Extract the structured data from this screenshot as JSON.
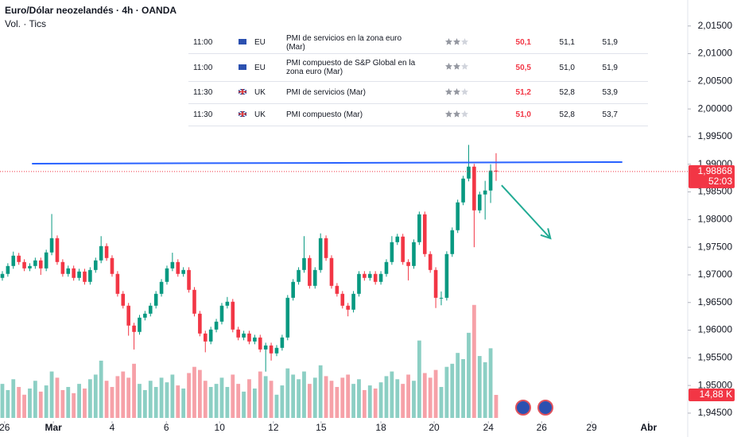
{
  "header": {
    "title": "Euro/Dólar neozelandés · 4h · OANDA",
    "indicator": "Vol. · Tics"
  },
  "events": {
    "rows": [
      [
        "11:00",
        "EU",
        "PMI de servicios en la zona euro (Mar)",
        "50,1",
        "51,1",
        "51,9"
      ],
      [
        "11:00",
        "EU",
        "PMI compuesto de S&P Global en la zona euro (Mar)",
        "50,5",
        "51,0",
        "51,9"
      ],
      [
        "11:30",
        "UK",
        "PMI de servicios (Mar)",
        "51,2",
        "52,8",
        "53,9"
      ],
      [
        "11:30",
        "UK",
        "PMI compuesto (Mar)",
        "51,0",
        "52,8",
        "53,7"
      ]
    ]
  },
  "chart_data": {
    "type": "candlestick",
    "open": [
      1.96945,
      1.97017,
      1.9716,
      1.97347,
      1.97232,
      1.97117,
      1.9716,
      1.97261,
      1.97117,
      1.97405,
      1.97663,
      1.97232,
      1.97017,
      1.97117,
      1.96945,
      1.9706,
      1.96873,
      1.97088,
      1.97261,
      1.9752,
      1.97304,
      1.97017,
      1.96657,
      1.96442,
      1.96083,
      1.95968,
      1.96226,
      1.96298,
      1.96442,
      1.96657,
      1.96873,
      1.97117,
      1.97232,
      1.97017,
      1.97088,
      1.96729,
      1.96298,
      1.95939,
      1.95795,
      1.96011,
      1.96154,
      1.96442,
      1.96514,
      1.96011,
      1.95867,
      1.95939,
      1.95795,
      1.95867,
      1.95651,
      1.95723,
      1.9558,
      1.9568,
      1.95867,
      1.96585,
      1.96873,
      1.97088,
      1.97304,
      1.96801,
      1.97088,
      1.97663,
      1.97304,
      1.96801,
      1.96657,
      1.96442,
      1.9637,
      1.96657,
      1.97017,
      1.96945,
      1.97017,
      1.96873,
      1.97017,
      1.97232,
      1.97591,
      1.97692,
      1.97232,
      1.9716,
      1.97591,
      1.98094,
      1.97376,
      1.97088,
      1.96585,
      1.96585,
      1.97376,
      1.97807,
      1.9831,
      1.98741,
      1.98957,
      1.98166,
      1.98454,
      1.98525,
      1.98885
    ],
    "high": [
      1.97067,
      1.9721,
      1.9742,
      1.97397,
      1.97282,
      1.9721,
      1.97311,
      1.97311,
      1.97455,
      1.981,
      1.97713,
      1.97282,
      1.97167,
      1.97167,
      1.9711,
      1.9711,
      1.97138,
      1.97311,
      1.977,
      1.9757,
      1.97354,
      1.97067,
      1.96707,
      1.96492,
      1.96133,
      1.96276,
      1.96348,
      1.96492,
      1.96707,
      1.96923,
      1.97167,
      1.974,
      1.97282,
      1.97138,
      1.97138,
      1.96779,
      1.96348,
      1.95989,
      1.96061,
      1.96204,
      1.96492,
      1.966,
      1.96564,
      1.96061,
      1.95989,
      1.95989,
      1.95917,
      1.95917,
      1.95773,
      1.95773,
      1.9573,
      1.95917,
      1.96635,
      1.96923,
      1.97138,
      1.977,
      1.97354,
      1.97138,
      1.9775,
      1.97713,
      1.97354,
      1.96851,
      1.96707,
      1.96492,
      1.96707,
      1.97067,
      1.97067,
      1.97067,
      1.97067,
      1.97067,
      1.97282,
      1.977,
      1.97742,
      1.97742,
      1.97282,
      1.97641,
      1.98144,
      1.98144,
      1.97426,
      1.97138,
      1.967,
      1.97426,
      1.97857,
      1.9836,
      1.98791,
      1.9935,
      1.99007,
      1.98504,
      1.987,
      1.99,
      1.992
    ],
    "low": [
      1.96895,
      1.96967,
      1.9711,
      1.97182,
      1.97067,
      1.97067,
      1.9711,
      1.97,
      1.97067,
      1.97355,
      1.97182,
      1.96967,
      1.96967,
      1.96895,
      1.96895,
      1.96823,
      1.96823,
      1.97038,
      1.97211,
      1.97254,
      1.96967,
      1.96607,
      1.96392,
      1.959,
      1.9565,
      1.95918,
      1.96176,
      1.96248,
      1.96392,
      1.96607,
      1.96823,
      1.97067,
      1.96967,
      1.96967,
      1.96679,
      1.96248,
      1.95889,
      1.956,
      1.95745,
      1.95961,
      1.96104,
      1.96392,
      1.95961,
      1.95817,
      1.95817,
      1.95745,
      1.95745,
      1.95601,
      1.9525,
      1.9545,
      1.9553,
      1.9563,
      1.95817,
      1.96535,
      1.96823,
      1.97038,
      1.96751,
      1.96751,
      1.97038,
      1.97254,
      1.96751,
      1.96607,
      1.96392,
      1.9625,
      1.9632,
      1.96607,
      1.96895,
      1.96895,
      1.96823,
      1.96823,
      1.96967,
      1.97182,
      1.97541,
      1.97182,
      1.969,
      1.9711,
      1.97541,
      1.97326,
      1.97038,
      1.964,
      1.9645,
      1.96535,
      1.97326,
      1.97757,
      1.9826,
      1.98691,
      1.975,
      1.98116,
      1.98,
      1.983,
      1.987
    ],
    "close": [
      1.97017,
      1.9716,
      1.97347,
      1.97232,
      1.97117,
      1.9716,
      1.97261,
      1.97117,
      1.97405,
      1.97663,
      1.97232,
      1.97017,
      1.97117,
      1.96945,
      1.9706,
      1.96873,
      1.97088,
      1.97261,
      1.9752,
      1.97304,
      1.97017,
      1.96657,
      1.96442,
      1.96083,
      1.95968,
      1.96226,
      1.96298,
      1.96442,
      1.96657,
      1.96873,
      1.97117,
      1.97232,
      1.97017,
      1.97088,
      1.96729,
      1.96298,
      1.95939,
      1.95795,
      1.96011,
      1.96154,
      1.96442,
      1.96514,
      1.96011,
      1.95867,
      1.95939,
      1.95795,
      1.95867,
      1.95651,
      1.95723,
      1.9558,
      1.9568,
      1.95867,
      1.96585,
      1.96873,
      1.97088,
      1.97304,
      1.96801,
      1.97088,
      1.97663,
      1.97304,
      1.96801,
      1.96657,
      1.96442,
      1.9637,
      1.96657,
      1.97017,
      1.96945,
      1.97017,
      1.96873,
      1.97017,
      1.97232,
      1.97591,
      1.97692,
      1.97232,
      1.9716,
      1.97591,
      1.98094,
      1.97376,
      1.97088,
      1.96585,
      1.96585,
      1.97376,
      1.97807,
      1.9831,
      1.98741,
      1.98957,
      1.98166,
      1.98454,
      1.98525,
      1.98885,
      1.98868
    ],
    "volume": [
      22,
      18,
      25,
      20,
      15,
      19,
      24,
      17,
      21,
      30,
      26,
      18,
      20,
      16,
      22,
      19,
      25,
      28,
      37,
      24,
      20,
      27,
      30,
      26,
      35,
      22,
      18,
      24,
      20,
      26,
      23,
      28,
      21,
      19,
      29,
      33,
      31,
      24,
      20,
      22,
      26,
      20,
      28,
      22,
      17,
      25,
      19,
      30,
      27,
      24,
      15,
      21,
      32,
      28,
      25,
      30,
      22,
      26,
      34,
      27,
      24,
      20,
      26,
      28,
      22,
      25,
      18,
      21,
      19,
      23,
      27,
      30,
      25,
      22,
      28,
      24,
      50,
      29,
      26,
      31,
      20,
      33,
      35,
      42,
      38,
      55,
      73,
      40,
      36,
      45,
      14.88
    ],
    "up_color": "#089981",
    "down_color": "#f23645",
    "volume_up_color": "#8ccfc4",
    "volume_down_color": "#f6a1a8",
    "xlim": [
      -0.43,
      124.93
    ],
    "xticks": [
      {
        "value": 0.4,
        "label": "26"
      },
      {
        "value": 9.3,
        "label": "Mar"
      },
      {
        "value": 20,
        "label": "4"
      },
      {
        "value": 29.9,
        "label": "6"
      },
      {
        "value": 39.6,
        "label": "10"
      },
      {
        "value": 49.4,
        "label": "12"
      },
      {
        "value": 58.1,
        "label": "15"
      },
      {
        "value": 69,
        "label": "18"
      },
      {
        "value": 78.7,
        "label": "20"
      },
      {
        "value": 88.6,
        "label": "24"
      },
      {
        "value": 98.3,
        "label": "26"
      },
      {
        "value": 107.4,
        "label": "29"
      },
      {
        "value": 117.8,
        "label": "Abr"
      }
    ],
    "ylim": [
      1.9414,
      2.0197
    ],
    "yticks": [
      {
        "value": 1.945,
        "label": "1,94500"
      },
      {
        "value": 1.95,
        "label": "1,95000"
      },
      {
        "value": 1.955,
        "label": "1,95500"
      },
      {
        "value": 1.96,
        "label": "1,96000"
      },
      {
        "value": 1.965,
        "label": "1,96500"
      },
      {
        "value": 1.97,
        "label": "1,97000"
      },
      {
        "value": 1.975,
        "label": "1,97500"
      },
      {
        "value": 1.98,
        "label": "1,98000"
      },
      {
        "value": 1.985,
        "label": "1,98500"
      },
      {
        "value": 1.99,
        "label": "1,99000"
      },
      {
        "value": 1.995,
        "label": "1,99500"
      },
      {
        "value": 2.0,
        "label": "2,00000"
      },
      {
        "value": 2.005,
        "label": "2,00500"
      },
      {
        "value": 2.01,
        "label": "2,01000"
      },
      {
        "value": 2.015,
        "label": "2,01500"
      }
    ],
    "y2lim": [
      0,
      270
    ],
    "last_price": {
      "value": 1.98868,
      "label": "1,98868"
    },
    "countdown": "52:03",
    "last_volume": {
      "value": 14.88,
      "label": "14,88 K"
    },
    "trend_line": {
      "color": "#2962ff",
      "x": [
        5.4,
        113
      ],
      "y": [
        1.9901,
        1.9904
      ]
    },
    "arrow": {
      "color": "#22ab94",
      "x": [
        91,
        99.9
      ],
      "y": [
        1.9862,
        1.9766
      ]
    }
  }
}
